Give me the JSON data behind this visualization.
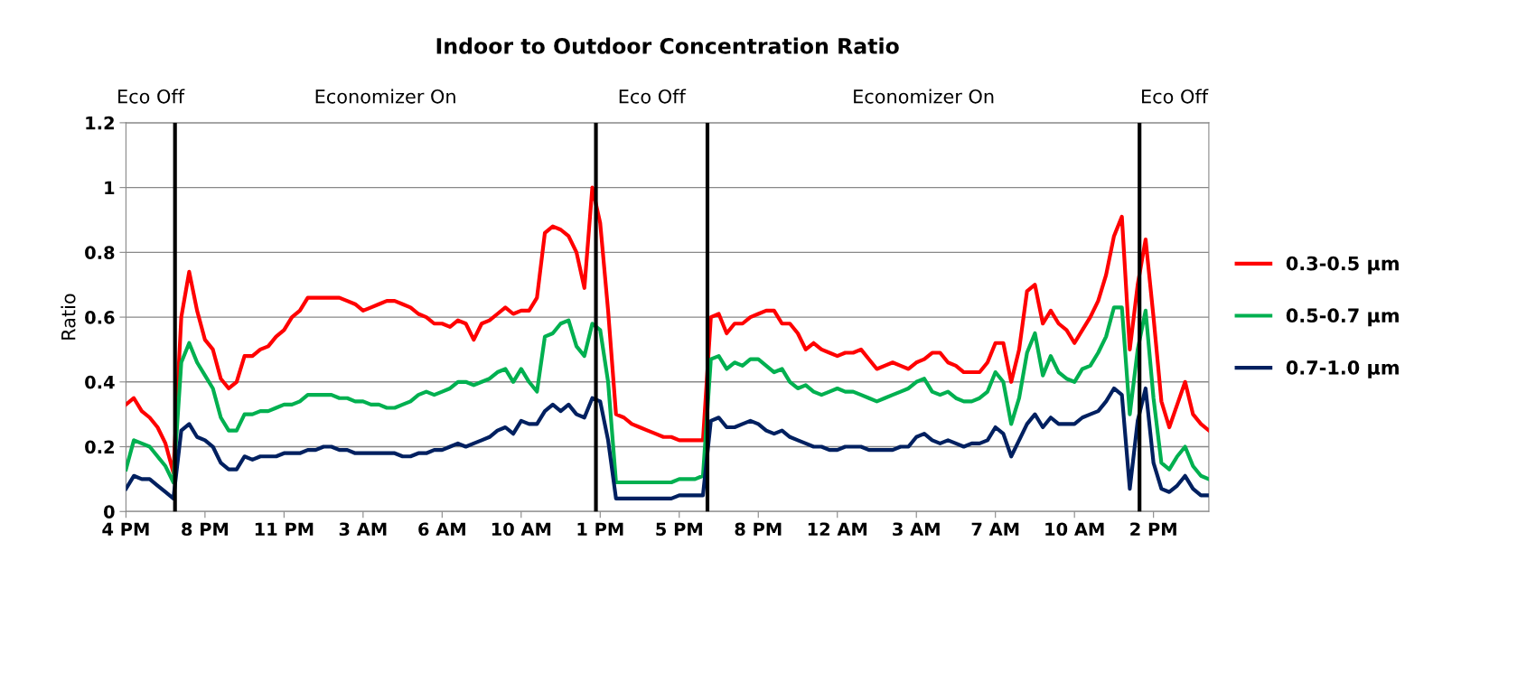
{
  "chart_data": {
    "type": "line",
    "title": "Indoor to Outdoor Concentration Ratio",
    "ylabel": "Ratio",
    "annotations": [
      "Eco Off",
      "Economizer On",
      "Eco Off",
      "Economizer On",
      "Eco Off"
    ],
    "categories": [
      "4 PM",
      null,
      null,
      null,
      null,
      null,
      null,
      null,
      null,
      null,
      "8 PM",
      null,
      null,
      null,
      null,
      null,
      null,
      null,
      null,
      null,
      "11 PM",
      null,
      null,
      null,
      null,
      null,
      null,
      null,
      null,
      null,
      "3 AM",
      null,
      null,
      null,
      null,
      null,
      null,
      null,
      null,
      null,
      "6 AM",
      null,
      null,
      null,
      null,
      null,
      null,
      null,
      null,
      null,
      "10 AM",
      null,
      null,
      null,
      null,
      null,
      null,
      null,
      null,
      null,
      "1 PM",
      null,
      null,
      null,
      null,
      null,
      null,
      null,
      null,
      null,
      "5 PM",
      null,
      null,
      null,
      null,
      null,
      null,
      null,
      null,
      null,
      "8 PM",
      null,
      null,
      null,
      null,
      null,
      null,
      null,
      null,
      null,
      "12 AM",
      null,
      null,
      null,
      null,
      null,
      null,
      null,
      null,
      null,
      "3 AM",
      null,
      null,
      null,
      null,
      null,
      null,
      null,
      null,
      null,
      "7 AM",
      null,
      null,
      null,
      null,
      null,
      null,
      null,
      null,
      null,
      "10 AM",
      null,
      null,
      null,
      null,
      null,
      null,
      null,
      null,
      null,
      "2 PM",
      null,
      null,
      null,
      null,
      null,
      null,
      null
    ],
    "series": [
      {
        "name": "0.3-0.5 µm",
        "color": "#ff0000",
        "values": [
          0.33,
          0.35,
          0.31,
          0.29,
          0.26,
          0.21,
          0.12,
          0.6,
          0.74,
          0.62,
          0.53,
          0.5,
          0.41,
          0.38,
          0.4,
          0.48,
          0.48,
          0.5,
          0.51,
          0.54,
          0.56,
          0.6,
          0.62,
          0.66,
          0.66,
          0.66,
          0.66,
          0.66,
          0.65,
          0.64,
          0.62,
          0.63,
          0.64,
          0.65,
          0.65,
          0.64,
          0.63,
          0.61,
          0.6,
          0.58,
          0.58,
          0.57,
          0.59,
          0.58,
          0.53,
          0.58,
          0.59,
          0.61,
          0.63,
          0.61,
          0.62,
          0.62,
          0.66,
          0.86,
          0.88,
          0.87,
          0.85,
          0.8,
          0.69,
          1.0,
          0.89,
          0.62,
          0.3,
          0.29,
          0.27,
          0.26,
          0.25,
          0.24,
          0.23,
          0.23,
          0.22,
          0.22,
          0.22,
          0.22,
          0.6,
          0.61,
          0.55,
          0.58,
          0.58,
          0.6,
          0.61,
          0.62,
          0.62,
          0.58,
          0.58,
          0.55,
          0.5,
          0.52,
          0.5,
          0.49,
          0.48,
          0.49,
          0.49,
          0.5,
          0.47,
          0.44,
          0.45,
          0.46,
          0.45,
          0.44,
          0.46,
          0.47,
          0.49,
          0.49,
          0.46,
          0.45,
          0.43,
          0.43,
          0.43,
          0.46,
          0.52,
          0.52,
          0.4,
          0.5,
          0.68,
          0.7,
          0.58,
          0.62,
          0.58,
          0.56,
          0.52,
          0.56,
          0.6,
          0.65,
          0.73,
          0.85,
          0.91,
          0.5,
          0.7,
          0.84,
          0.6,
          0.34,
          0.26,
          0.33,
          0.4,
          0.3,
          0.27,
          0.25
        ]
      },
      {
        "name": "0.5-0.7 µm",
        "color": "#00b050",
        "values": [
          0.13,
          0.22,
          0.21,
          0.2,
          0.17,
          0.14,
          0.09,
          0.46,
          0.52,
          0.46,
          0.42,
          0.38,
          0.29,
          0.25,
          0.25,
          0.3,
          0.3,
          0.31,
          0.31,
          0.32,
          0.33,
          0.33,
          0.34,
          0.36,
          0.36,
          0.36,
          0.36,
          0.35,
          0.35,
          0.34,
          0.34,
          0.33,
          0.33,
          0.32,
          0.32,
          0.33,
          0.34,
          0.36,
          0.37,
          0.36,
          0.37,
          0.38,
          0.4,
          0.4,
          0.39,
          0.4,
          0.41,
          0.43,
          0.44,
          0.4,
          0.44,
          0.4,
          0.37,
          0.54,
          0.55,
          0.58,
          0.59,
          0.51,
          0.48,
          0.58,
          0.56,
          0.4,
          0.09,
          0.09,
          0.09,
          0.09,
          0.09,
          0.09,
          0.09,
          0.09,
          0.1,
          0.1,
          0.1,
          0.11,
          0.47,
          0.48,
          0.44,
          0.46,
          0.45,
          0.47,
          0.47,
          0.45,
          0.43,
          0.44,
          0.4,
          0.38,
          0.39,
          0.37,
          0.36,
          0.37,
          0.38,
          0.37,
          0.37,
          0.36,
          0.35,
          0.34,
          0.35,
          0.36,
          0.37,
          0.38,
          0.4,
          0.41,
          0.37,
          0.36,
          0.37,
          0.35,
          0.34,
          0.34,
          0.35,
          0.37,
          0.43,
          0.4,
          0.27,
          0.35,
          0.49,
          0.55,
          0.42,
          0.48,
          0.43,
          0.41,
          0.4,
          0.44,
          0.45,
          0.49,
          0.54,
          0.63,
          0.63,
          0.3,
          0.5,
          0.62,
          0.35,
          0.15,
          0.13,
          0.17,
          0.2,
          0.14,
          0.11,
          0.1
        ]
      },
      {
        "name": "0.7-1.0 µm",
        "color": "#002060",
        "values": [
          0.07,
          0.11,
          0.1,
          0.1,
          0.08,
          0.06,
          0.04,
          0.25,
          0.27,
          0.23,
          0.22,
          0.2,
          0.15,
          0.13,
          0.13,
          0.17,
          0.16,
          0.17,
          0.17,
          0.17,
          0.18,
          0.18,
          0.18,
          0.19,
          0.19,
          0.2,
          0.2,
          0.19,
          0.19,
          0.18,
          0.18,
          0.18,
          0.18,
          0.18,
          0.18,
          0.17,
          0.17,
          0.18,
          0.18,
          0.19,
          0.19,
          0.2,
          0.21,
          0.2,
          0.21,
          0.22,
          0.23,
          0.25,
          0.26,
          0.24,
          0.28,
          0.27,
          0.27,
          0.31,
          0.33,
          0.31,
          0.33,
          0.3,
          0.29,
          0.35,
          0.34,
          0.22,
          0.04,
          0.04,
          0.04,
          0.04,
          0.04,
          0.04,
          0.04,
          0.04,
          0.05,
          0.05,
          0.05,
          0.05,
          0.28,
          0.29,
          0.26,
          0.26,
          0.27,
          0.28,
          0.27,
          0.25,
          0.24,
          0.25,
          0.23,
          0.22,
          0.21,
          0.2,
          0.2,
          0.19,
          0.19,
          0.2,
          0.2,
          0.2,
          0.19,
          0.19,
          0.19,
          0.19,
          0.2,
          0.2,
          0.23,
          0.24,
          0.22,
          0.21,
          0.22,
          0.21,
          0.2,
          0.21,
          0.21,
          0.22,
          0.26,
          0.24,
          0.17,
          0.22,
          0.27,
          0.3,
          0.26,
          0.29,
          0.27,
          0.27,
          0.27,
          0.29,
          0.3,
          0.31,
          0.34,
          0.38,
          0.36,
          0.07,
          0.28,
          0.38,
          0.15,
          0.07,
          0.06,
          0.08,
          0.11,
          0.07,
          0.05,
          0.05
        ]
      }
    ],
    "ylim": [
      0,
      1.2
    ],
    "yticks": [
      0,
      0.2,
      0.4,
      0.6,
      0.8,
      1,
      1.2
    ],
    "grid": "y",
    "legend": "right",
    "marker": "none",
    "line_style": "solid"
  }
}
